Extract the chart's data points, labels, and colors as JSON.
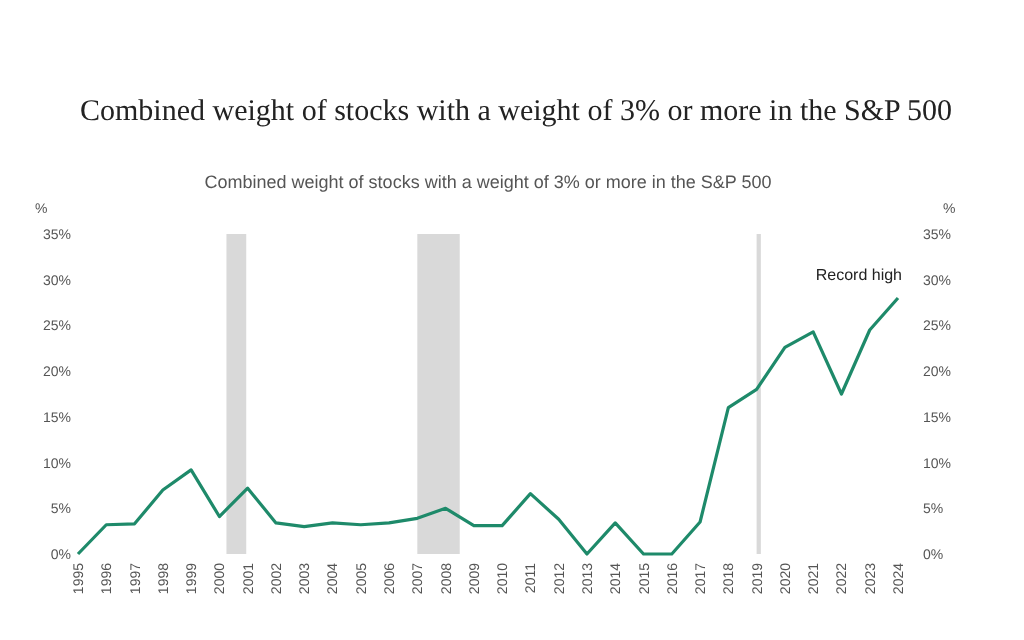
{
  "chart_data": {
    "type": "line",
    "title": "Combined weight of stocks with a weight of 3% or more in the S&P 500",
    "subtitle": "Combined weight of stocks with a weight of 3% or more in the S&P 500",
    "ylabel": "%",
    "y2label": "%",
    "x": [
      1995,
      1996,
      1997,
      1998,
      1999,
      2000,
      2001,
      2002,
      2003,
      2004,
      2005,
      2006,
      2007,
      2008,
      2009,
      2010,
      2011,
      2012,
      2013,
      2014,
      2015,
      2016,
      2017,
      2018,
      2019,
      2020,
      2021,
      2022,
      2023,
      2024
    ],
    "series": [
      {
        "color": "#1e8a6a",
        "values": [
          0,
          3.2,
          3.3,
          7,
          9.2,
          4.1,
          7.2,
          3.4,
          3.0,
          3.4,
          3.2,
          3.4,
          3.9,
          5.0,
          3.1,
          3.1,
          6.6,
          3.8,
          0,
          3.4,
          0,
          0,
          3.5,
          16,
          18,
          22.6,
          24.3,
          17.5,
          24.5,
          28
        ]
      }
    ],
    "xlim": [
      1995,
      2024
    ],
    "xticks": [
      1995,
      1996,
      1997,
      1998,
      1999,
      2000,
      2001,
      2002,
      2003,
      2004,
      2005,
      2006,
      2007,
      2008,
      2009,
      2010,
      2011,
      2012,
      2013,
      2014,
      2015,
      2016,
      2017,
      2018,
      2019,
      2020,
      2021,
      2022,
      2023,
      2024
    ],
    "ylim": [
      0,
      35
    ],
    "yticks": [
      {
        "value": 0,
        "label": "0%"
      },
      {
        "value": 5,
        "label": "5%"
      },
      {
        "value": 10,
        "label": "10%"
      },
      {
        "value": 15,
        "label": "15%"
      },
      {
        "value": 20,
        "label": "20%"
      },
      {
        "value": 25,
        "label": "25%"
      },
      {
        "value": 30,
        "label": "30%"
      },
      {
        "value": 35,
        "label": "35%"
      }
    ],
    "y2lim": [
      0,
      35
    ],
    "y2ticks": [
      {
        "value": 0,
        "label": "0%"
      },
      {
        "value": 5,
        "label": "5%"
      },
      {
        "value": 10,
        "label": "10%"
      },
      {
        "value": 15,
        "label": "15%"
      },
      {
        "value": 20,
        "label": "20%"
      },
      {
        "value": 25,
        "label": "25%"
      },
      {
        "value": 30,
        "label": "30%"
      },
      {
        "value": 35,
        "label": "35%"
      }
    ],
    "bands": [
      {
        "axis": "x",
        "from": 2000.25,
        "to": 2000.95,
        "color": "#d9d9d9"
      },
      {
        "axis": "x",
        "from": 2007,
        "to": 2008.5,
        "color": "#d9d9d9"
      },
      {
        "axis": "x",
        "from": 2019,
        "to": 2019.15,
        "color": "#d9d9d9"
      }
    ],
    "annotations": [
      {
        "text": "Record high",
        "x": 2024,
        "y": 28
      }
    ],
    "grid": false,
    "marker": "none",
    "line_style": "solid"
  }
}
